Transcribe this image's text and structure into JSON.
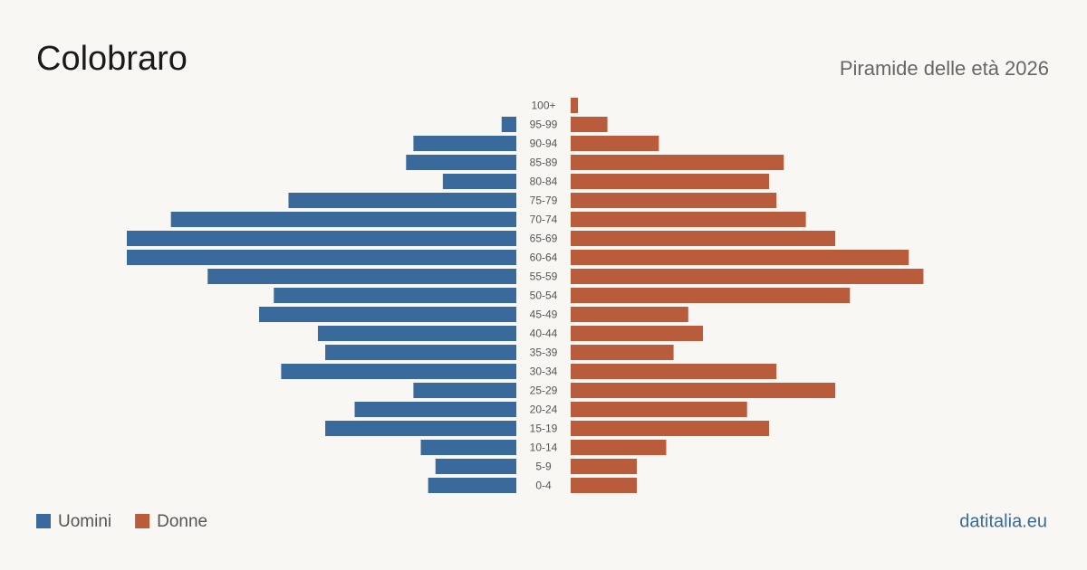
{
  "chart_data": {
    "type": "pyramid",
    "title": "Colobraro",
    "subtitle": "Piramide delle età 2026",
    "source": "datitalia.eu",
    "categories": [
      "100+",
      "95-99",
      "90-94",
      "85-89",
      "80-84",
      "75-79",
      "70-74",
      "65-69",
      "60-64",
      "55-59",
      "50-54",
      "45-49",
      "40-44",
      "35-39",
      "30-34",
      "25-29",
      "20-24",
      "15-19",
      "10-14",
      "5-9",
      "0-4"
    ],
    "series": [
      {
        "name": "Uomini",
        "color": "#3a6a9c",
        "values": [
          0,
          2,
          14,
          15,
          10,
          31,
          47,
          53,
          53,
          42,
          33,
          35,
          27,
          26,
          32,
          14,
          22,
          26,
          13,
          11,
          12
        ]
      },
      {
        "name": "Donne",
        "color": "#b85c3c",
        "values": [
          1,
          5,
          12,
          29,
          27,
          28,
          32,
          36,
          46,
          48,
          38,
          16,
          18,
          14,
          28,
          36,
          24,
          27,
          13,
          9,
          9
        ]
      }
    ]
  }
}
